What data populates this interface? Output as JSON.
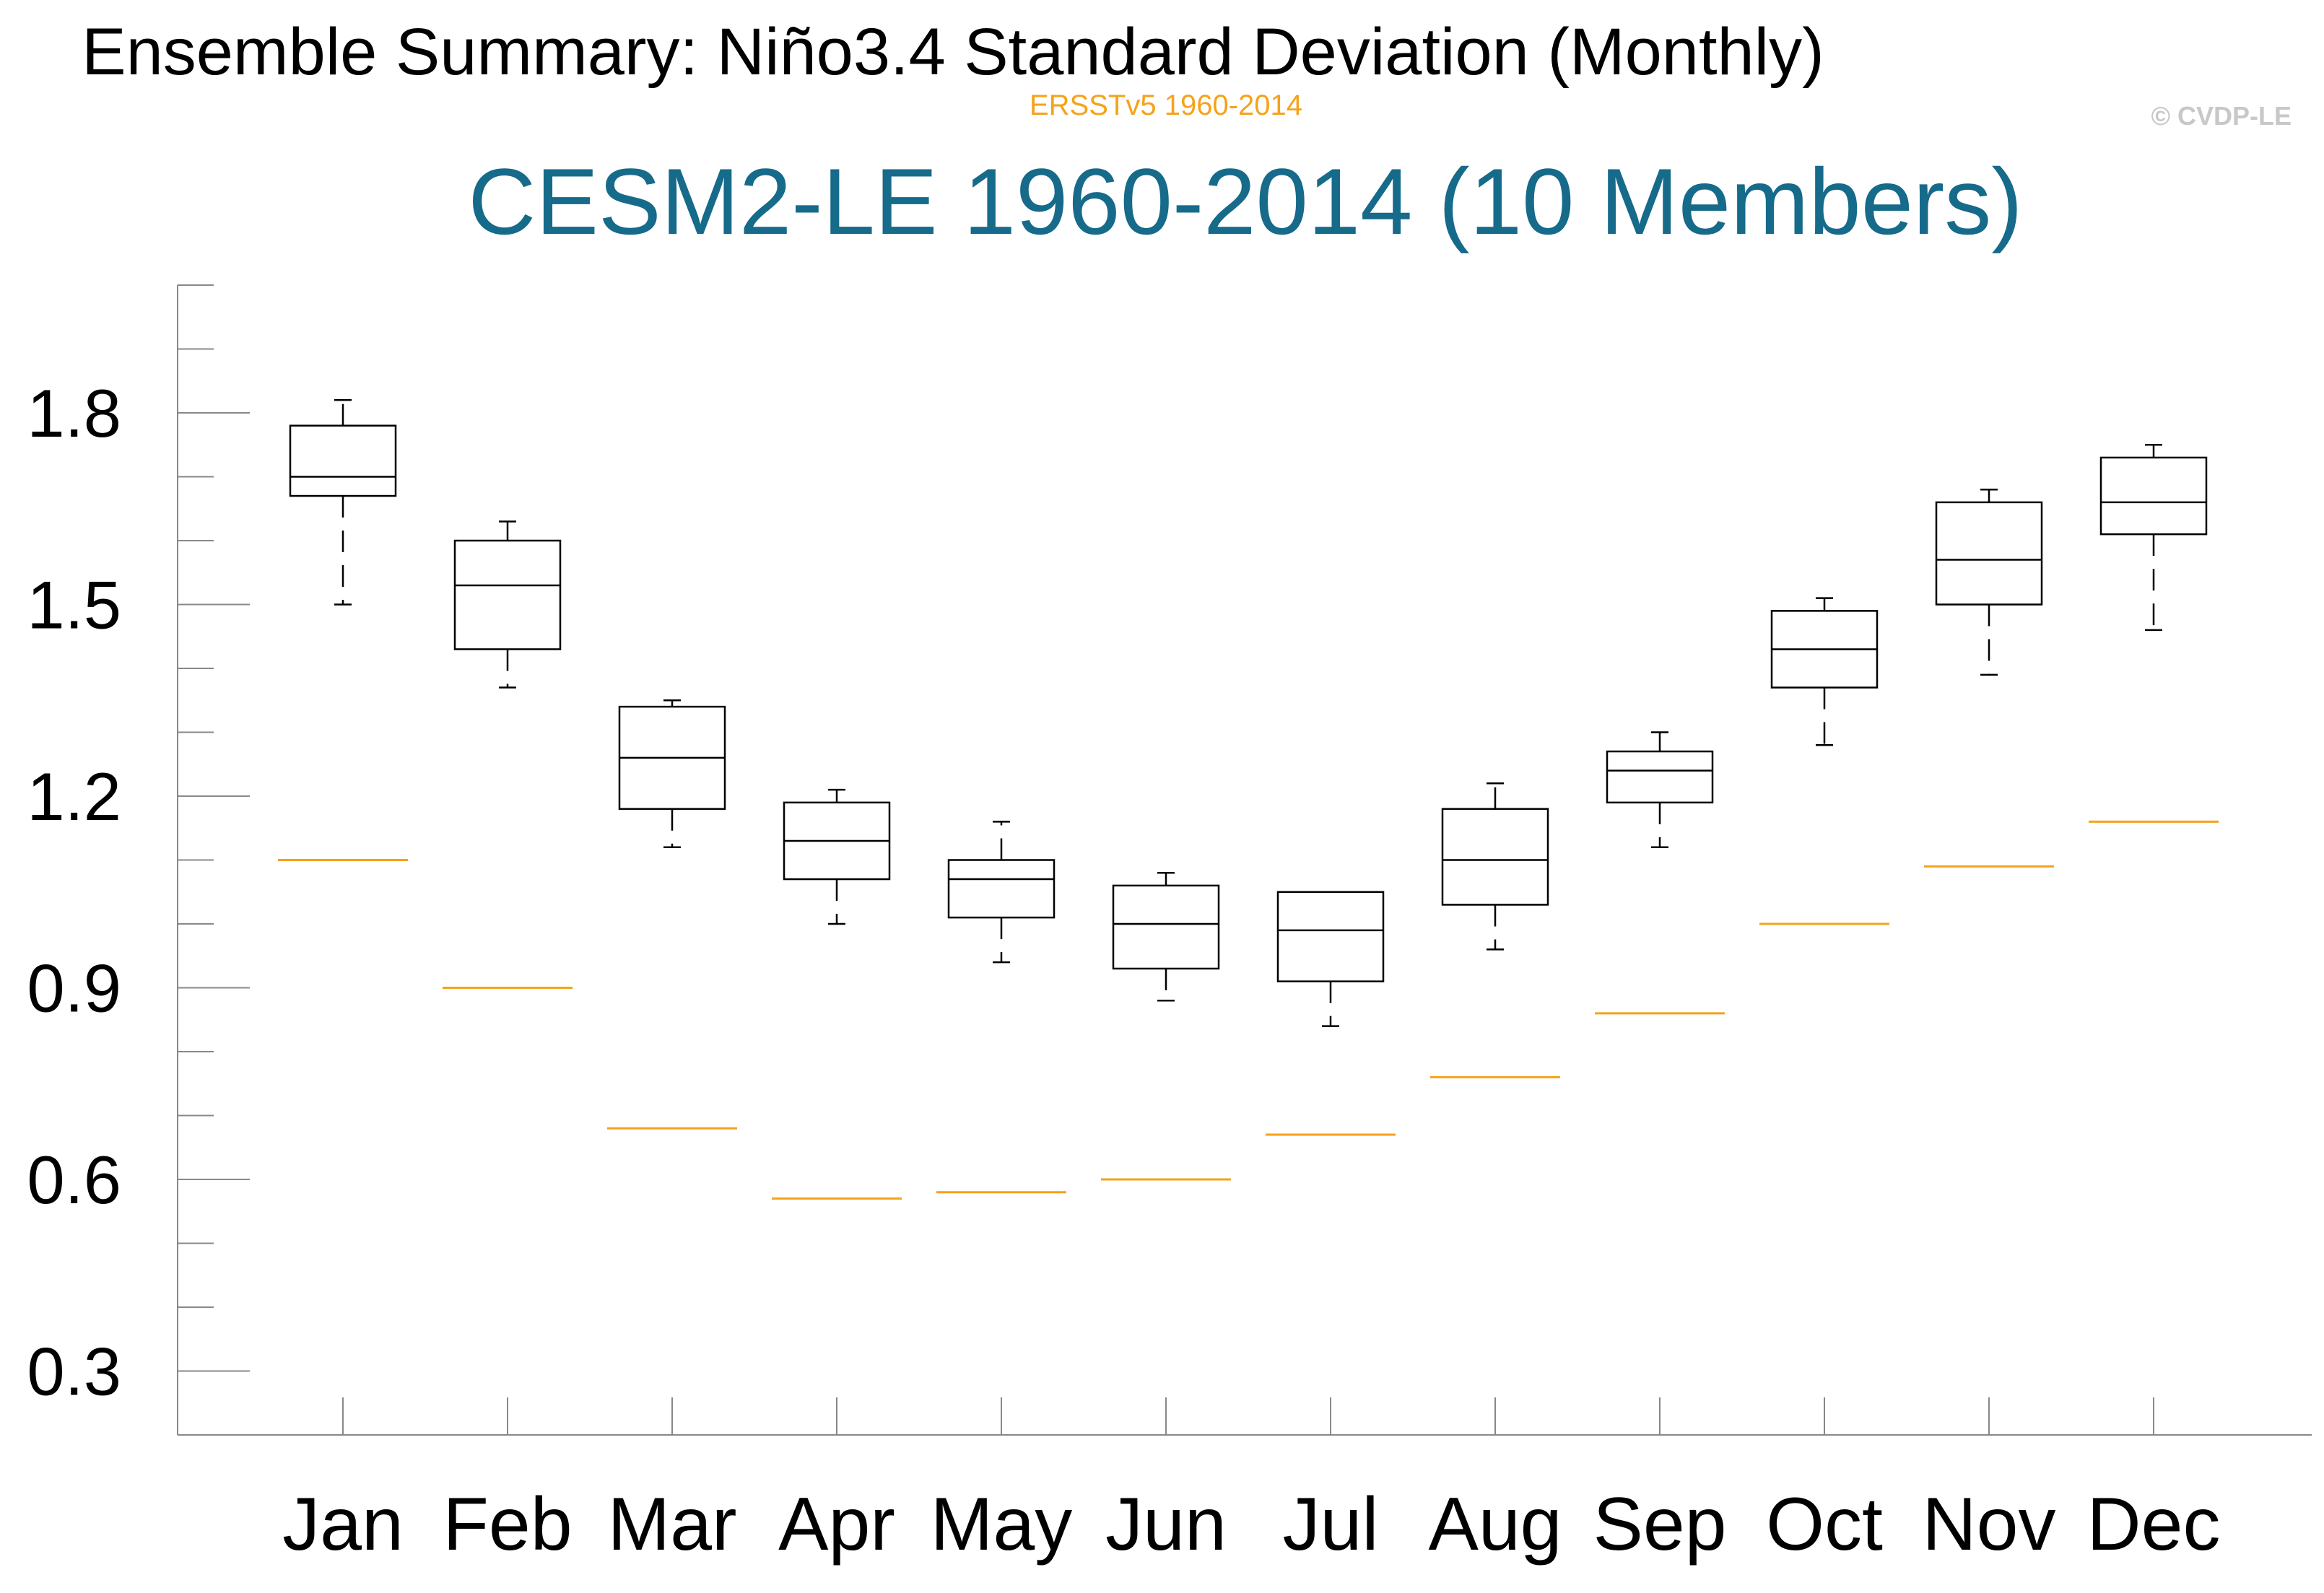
{
  "header": {
    "title": "Ensemble Summary: Niño3.4 Standard Deviation (Monthly)",
    "subtitle": "ERSSTv5 1960-2014",
    "copyright": "© CVDP-LE",
    "model_title": "CESM2-LE 1960-2014 (10 Members)"
  },
  "colors": {
    "box": "#000000",
    "observation": "#f6a21a",
    "model_title": "#166a8a",
    "axis": "#888888"
  },
  "chart_data": {
    "type": "box",
    "title": "Ensemble Summary: Niño3.4 Standard Deviation (Monthly)",
    "subtitle": "CESM2-LE 1960-2014 (10 Members)",
    "xlabel": "",
    "ylabel": "",
    "ylim": [
      0.2,
      2.0
    ],
    "yticks": [
      0.3,
      0.6,
      0.9,
      1.2,
      1.5,
      1.8
    ],
    "ytick_labels": [
      "0.3",
      "0.6",
      "0.9",
      "1.2",
      "1.5",
      "1.8"
    ],
    "y_minor_step": 0.1,
    "grid": false,
    "categories": [
      "Jan",
      "Feb",
      "Mar",
      "Apr",
      "May",
      "Jun",
      "Jul",
      "Aug",
      "Sep",
      "Oct",
      "Nov",
      "Dec"
    ],
    "series": [
      {
        "name": "CESM2-LE",
        "whisker_low": [
          1.5,
          1.37,
          1.12,
          1.0,
          0.94,
          0.88,
          0.84,
          0.96,
          1.12,
          1.28,
          1.39,
          1.46
        ],
        "q1": [
          1.67,
          1.43,
          1.18,
          1.07,
          1.01,
          0.93,
          0.91,
          1.03,
          1.19,
          1.37,
          1.5,
          1.61
        ],
        "median": [
          1.7,
          1.53,
          1.26,
          1.13,
          1.07,
          1.0,
          0.99,
          1.1,
          1.24,
          1.43,
          1.57,
          1.66
        ],
        "q3": [
          1.78,
          1.6,
          1.34,
          1.19,
          1.1,
          1.06,
          1.05,
          1.18,
          1.27,
          1.49,
          1.66,
          1.73
        ],
        "whisker_high": [
          1.82,
          1.63,
          1.35,
          1.21,
          1.16,
          1.08,
          1.05,
          1.22,
          1.3,
          1.51,
          1.68,
          1.75
        ]
      },
      {
        "name": "ERSSTv5 1960-2014",
        "values": [
          1.1,
          0.9,
          0.68,
          0.57,
          0.58,
          0.6,
          0.67,
          0.76,
          0.86,
          1.0,
          1.09,
          1.16
        ]
      }
    ]
  }
}
